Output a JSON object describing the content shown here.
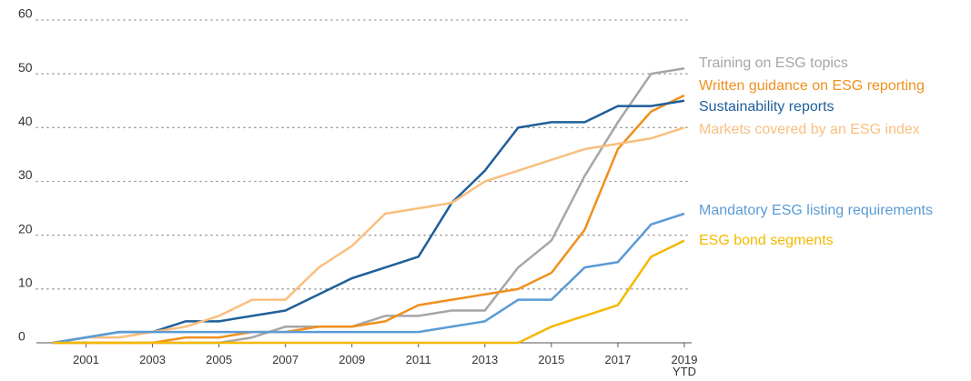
{
  "chart_data": {
    "type": "line",
    "x": [
      2000,
      2001,
      2002,
      2003,
      2004,
      2005,
      2006,
      2007,
      2008,
      2009,
      2010,
      2011,
      2012,
      2013,
      2014,
      2015,
      2016,
      2017,
      2018,
      2019
    ],
    "xlim": [
      2000,
      2019
    ],
    "xticks": [
      2001,
      2003,
      2005,
      2007,
      2009,
      2011,
      2013,
      2015,
      2017,
      {
        "value": 2019,
        "label": "2019 YTD"
      }
    ],
    "ylim": [
      0,
      60
    ],
    "yticks": [
      0,
      10,
      20,
      30,
      40,
      50,
      60
    ],
    "grid": true,
    "series": [
      {
        "name": "Training on ESG topics",
        "color": "#a6a6a6",
        "values": [
          0,
          0,
          0,
          0,
          0,
          0,
          1,
          3,
          3,
          3,
          5,
          5,
          6,
          6,
          14,
          19,
          31,
          41,
          50,
          51
        ]
      },
      {
        "name": "Written guidance on ESG reporting",
        "color": "#f0901e",
        "values": [
          0,
          0,
          0,
          0,
          1,
          1,
          2,
          2,
          3,
          3,
          4,
          7,
          8,
          9,
          10,
          13,
          21,
          36,
          43,
          46
        ]
      },
      {
        "name": "Sustainability reports",
        "color": "#1f5f99",
        "values": [
          0,
          1,
          2,
          2,
          4,
          4,
          5,
          6,
          9,
          12,
          14,
          16,
          26,
          32,
          40,
          41,
          41,
          44,
          44,
          45
        ]
      },
      {
        "name": "Markets covered by an ESG index",
        "color": "#f9bf7f",
        "values": [
          0,
          1,
          1,
          2,
          3,
          5,
          8,
          8,
          14,
          18,
          24,
          25,
          26,
          30,
          32,
          34,
          36,
          37,
          38,
          40
        ]
      },
      {
        "name": "Mandatory ESG listing requirements",
        "color": "#5b9bd5",
        "values": [
          0,
          1,
          2,
          2,
          2,
          2,
          2,
          2,
          2,
          2,
          2,
          2,
          3,
          4,
          8,
          8,
          14,
          15,
          22,
          24
        ]
      },
      {
        "name": "ESG bond segments",
        "color": "#f5b800",
        "values": [
          0,
          0,
          0,
          0,
          0,
          0,
          0,
          0,
          0,
          0,
          0,
          0,
          0,
          0,
          0,
          3,
          5,
          7,
          16,
          19
        ]
      }
    ]
  }
}
